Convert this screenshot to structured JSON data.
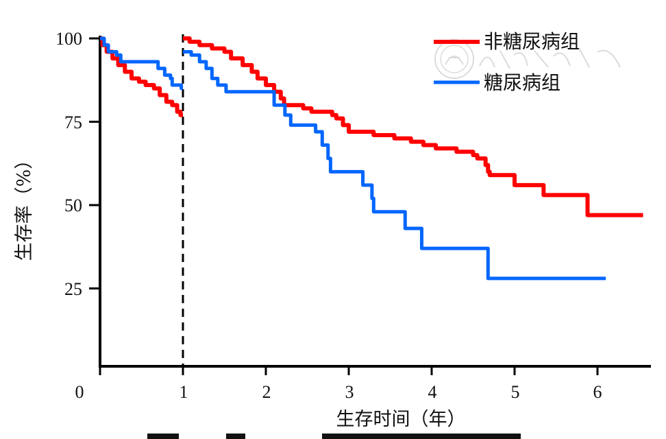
{
  "chart_data": {
    "type": "line",
    "subtype": "kaplan-meier step survival curve",
    "xlabel": "生存时间（年）",
    "ylabel": "生存率（%）",
    "x_ticks": [
      "0",
      "1",
      "2",
      "3",
      "4",
      "5",
      "6"
    ],
    "y_ticks": [
      "25",
      "50",
      "75",
      "100"
    ],
    "xlim": [
      -0.25,
      6.6
    ],
    "ylim": [
      0,
      100
    ],
    "grid": false,
    "legend_position": "top-right",
    "reference_line": {
      "x": 1,
      "style": "dashed",
      "color": "#000000"
    },
    "series": [
      {
        "name": "非糖尿病组",
        "color": "#ff0000",
        "points": [
          [
            0,
            100
          ],
          [
            0.03,
            98
          ],
          [
            0.08,
            96
          ],
          [
            0.15,
            94
          ],
          [
            0.22,
            92
          ],
          [
            0.3,
            90
          ],
          [
            0.38,
            88
          ],
          [
            0.47,
            87
          ],
          [
            0.55,
            86
          ],
          [
            0.65,
            85
          ],
          [
            0.72,
            83
          ],
          [
            0.8,
            81
          ],
          [
            0.87,
            80
          ],
          [
            0.93,
            78
          ],
          [
            0.97,
            77
          ],
          [
            1.0,
            77
          ],
          [
            1.0,
            100
          ],
          [
            1.08,
            99
          ],
          [
            1.2,
            98
          ],
          [
            1.35,
            97
          ],
          [
            1.5,
            96
          ],
          [
            1.58,
            94
          ],
          [
            1.72,
            92
          ],
          [
            1.83,
            90
          ],
          [
            1.9,
            88
          ],
          [
            2.0,
            86
          ],
          [
            2.1,
            84
          ],
          [
            2.18,
            82
          ],
          [
            2.22,
            80
          ],
          [
            2.45,
            79
          ],
          [
            2.55,
            78
          ],
          [
            2.8,
            77
          ],
          [
            2.85,
            76
          ],
          [
            2.93,
            74
          ],
          [
            3.0,
            72
          ],
          [
            3.3,
            71
          ],
          [
            3.55,
            70
          ],
          [
            3.75,
            69
          ],
          [
            3.9,
            68
          ],
          [
            4.05,
            67
          ],
          [
            4.3,
            66
          ],
          [
            4.5,
            65
          ],
          [
            4.55,
            64
          ],
          [
            4.65,
            62
          ],
          [
            4.68,
            60
          ],
          [
            4.7,
            59
          ],
          [
            5.0,
            56
          ],
          [
            5.35,
            53
          ],
          [
            5.85,
            53
          ],
          [
            5.88,
            47
          ],
          [
            6.55,
            47
          ]
        ]
      },
      {
        "name": "糖尿病组",
        "color": "#0066ff",
        "points": [
          [
            0,
            100
          ],
          [
            0.05,
            98
          ],
          [
            0.1,
            96
          ],
          [
            0.2,
            95
          ],
          [
            0.25,
            93
          ],
          [
            0.62,
            93
          ],
          [
            0.7,
            91
          ],
          [
            0.78,
            89
          ],
          [
            0.85,
            88
          ],
          [
            0.87,
            86
          ],
          [
            0.97,
            86
          ],
          [
            0.98,
            85
          ],
          [
            1.0,
            85
          ],
          [
            1.0,
            96
          ],
          [
            1.1,
            95
          ],
          [
            1.2,
            93
          ],
          [
            1.28,
            91
          ],
          [
            1.35,
            88
          ],
          [
            1.42,
            86
          ],
          [
            1.52,
            84
          ],
          [
            1.95,
            84
          ],
          [
            2.1,
            80
          ],
          [
            2.23,
            77
          ],
          [
            2.3,
            74
          ],
          [
            2.6,
            72
          ],
          [
            2.68,
            68
          ],
          [
            2.75,
            64
          ],
          [
            2.78,
            60
          ],
          [
            3.12,
            60
          ],
          [
            3.17,
            56
          ],
          [
            3.28,
            52
          ],
          [
            3.3,
            48
          ],
          [
            3.65,
            48
          ],
          [
            3.68,
            43
          ],
          [
            3.87,
            43
          ],
          [
            3.88,
            37
          ],
          [
            4.67,
            37
          ],
          [
            4.68,
            28
          ],
          [
            6.1,
            28
          ]
        ]
      }
    ]
  }
}
